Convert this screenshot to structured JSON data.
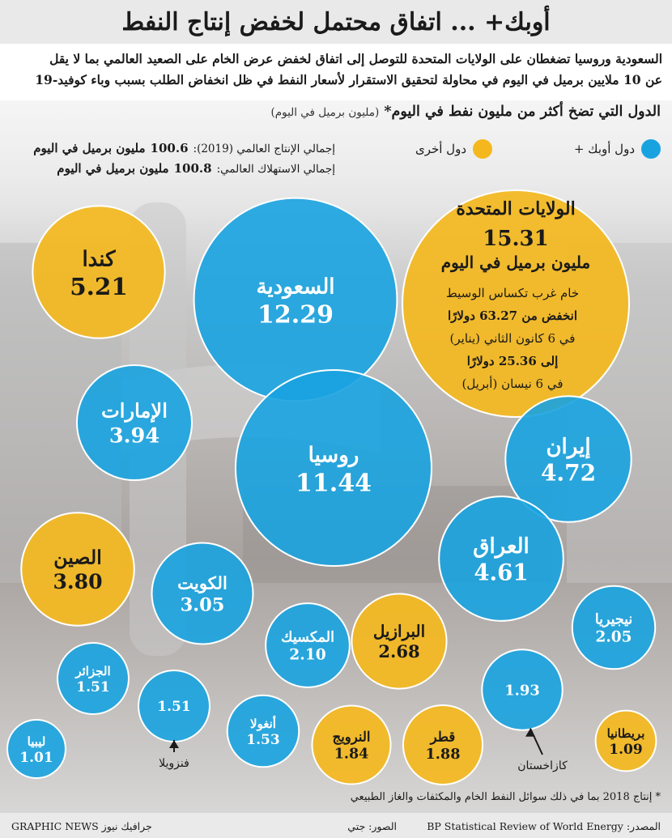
{
  "title": "أوبك+ ... اتفاق محتمل لخفض إنتاج النفط",
  "subtitle_line1": "السعودية وروسيا تضغطان على الولايات المتحدة للتوصل إلى اتفاق لخفض عرض الخام على الصعيد العالمي بما لا يقل",
  "subtitle_line2": "عن 10 ملايين برميل في اليوم في محاولة لتحقيق الاستقرار لأسعار النفط في ظل انخفاض الطلب بسبب وباء كوفيد-19",
  "bubble_heading": "الدول التي تضخ أكثر من مليون نفط في اليوم*",
  "bubble_heading_unit": "(مليون برميل في اليوم)",
  "legend": {
    "opec": "دول أوبك +",
    "other": "دول أخرى"
  },
  "stats": {
    "production_label": "إجمالي الإنتاج العالمي (2019):",
    "production_value": "100.6",
    "production_unit": "مليون برميل في اليوم",
    "consumption_label": "إجمالي الاستهلاك العالمي:",
    "consumption_value": "100.8",
    "consumption_unit": "مليون برميل في اليوم"
  },
  "colors": {
    "opec": "#18a3e0",
    "other": "#f4b81e"
  },
  "us_note": {
    "line1": "خام غرب تكساس الوسيط",
    "line2": "انخفض من 63.27 دولارًا",
    "line3": "في 6 كانون الثاني (يناير)",
    "line4": "إلى 25.36 دولارًا",
    "line5": "في 6 نيسان (أبريل)"
  },
  "us_unit": "مليون برميل في اليوم",
  "footnote": "* إنتاج 2018 بما في ذلك سوائل النفط الخام والمكثفات والغاز الطبيعي",
  "footer": {
    "source": "المصدر: BP Statistical Review of World Energy",
    "photo": "الصور: جتي",
    "brand": "GRAPHIC NEWS جرافيك نيوز"
  },
  "chart_data": {
    "type": "bubble",
    "unit": "مليون برميل في اليوم",
    "series": [
      {
        "name": "دول أوبك +",
        "group": "opec"
      },
      {
        "name": "دول أخرى",
        "group": "other"
      }
    ],
    "points": [
      {
        "country": "الولايات المتحدة",
        "value": 15.31,
        "group": "other"
      },
      {
        "country": "السعودية",
        "value": 12.29,
        "group": "opec"
      },
      {
        "country": "روسيا",
        "value": 11.44,
        "group": "opec"
      },
      {
        "country": "كندا",
        "value": 5.21,
        "group": "other"
      },
      {
        "country": "إيران",
        "value": 4.72,
        "group": "opec"
      },
      {
        "country": "العراق",
        "value": 4.61,
        "group": "opec"
      },
      {
        "country": "الإمارات",
        "value": 3.94,
        "group": "opec"
      },
      {
        "country": "الصين",
        "value": 3.8,
        "group": "other"
      },
      {
        "country": "الكويت",
        "value": 3.05,
        "group": "opec"
      },
      {
        "country": "البرازيل",
        "value": 2.68,
        "group": "other"
      },
      {
        "country": "المكسيك",
        "value": 2.1,
        "group": "opec"
      },
      {
        "country": "نيجيريا",
        "value": 2.05,
        "group": "opec"
      },
      {
        "country": "كازاخستان",
        "value": 1.93,
        "group": "opec"
      },
      {
        "country": "قطر",
        "value": 1.88,
        "group": "other"
      },
      {
        "country": "النرويج",
        "value": 1.84,
        "group": "other"
      },
      {
        "country": "أنغولا",
        "value": 1.53,
        "group": "opec"
      },
      {
        "country": "الجزائر",
        "value": 1.51,
        "group": "opec"
      },
      {
        "country": "فنزويلا",
        "value": 1.51,
        "group": "opec"
      },
      {
        "country": "بريطانيا",
        "value": 1.09,
        "group": "other"
      },
      {
        "country": "ليبيا",
        "value": 1.01,
        "group": "opec"
      }
    ]
  }
}
